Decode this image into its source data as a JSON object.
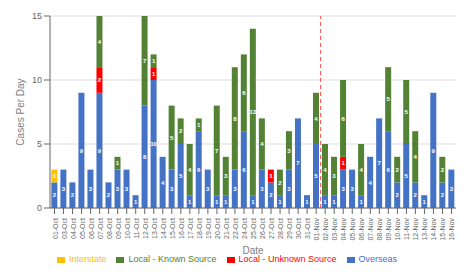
{
  "chart_data": {
    "type": "bar",
    "stacked": true,
    "data_labels": true,
    "grid": true,
    "legend": "bottom",
    "xlabel": "Date",
    "ylabel": "Cases Per Day",
    "categories": [
      "01-Oct",
      "03-Oct",
      "04-Oct",
      "05-Oct",
      "06-Oct",
      "07-Oct",
      "08-Oct",
      "09-Oct",
      "10-Oct",
      "11-Oct",
      "12-Oct",
      "13-Oct",
      "14-Oct",
      "15-Oct",
      "16-Oct",
      "17-Oct",
      "18-Oct",
      "19-Oct",
      "20-Oct",
      "21-Oct",
      "22-Oct",
      "24-Oct",
      "25-Oct",
      "26-Oct",
      "27-Oct",
      "28-Oct",
      "29-Oct",
      "30-Oct",
      "31-Oct",
      "01-Nov",
      "02-Nov",
      "03-Nov",
      "04-Nov",
      "05-Nov",
      "06-Nov",
      "07-Nov",
      "08-Nov",
      "09-Nov",
      "10-Nov",
      "11-Nov",
      "12-Nov",
      "13-Nov",
      "14-Nov",
      "15-Nov",
      "16-Nov"
    ],
    "series": [
      {
        "name": "Overseas",
        "color": "#4472C4",
        "values": [
          2,
          3,
          2,
          9,
          3,
          9,
          2,
          3,
          3,
          1,
          8,
          10,
          4,
          3,
          5,
          1,
          6,
          3,
          1,
          1,
          3,
          6,
          1,
          3,
          2,
          1,
          3,
          7,
          1,
          5,
          1,
          1,
          3,
          3,
          1,
          4,
          7,
          6,
          2,
          5,
          2,
          1,
          9,
          2,
          3
        ]
      },
      {
        "name": "Interstate",
        "color": "#FFC000",
        "values": [
          1,
          0,
          0,
          0,
          0,
          0,
          0,
          0,
          0,
          0,
          0,
          0,
          0,
          0,
          0,
          0,
          0,
          0,
          0,
          0,
          0,
          0,
          0,
          0,
          0,
          0,
          0,
          0,
          0,
          0,
          0,
          0,
          0,
          0,
          0,
          0,
          0,
          0,
          0,
          0,
          0,
          0,
          0,
          0,
          0
        ]
      },
      {
        "name": "Local - Unknown Source",
        "color": "#FF0000",
        "values": [
          0,
          0,
          0,
          0,
          0,
          2,
          0,
          0,
          0,
          0,
          0,
          1,
          0,
          0,
          0,
          0,
          0,
          0,
          0,
          0,
          0,
          0,
          0,
          0,
          1,
          0,
          0,
          0,
          0,
          0,
          0,
          0,
          1,
          0,
          0,
          0,
          0,
          0,
          0,
          0,
          0,
          0,
          0,
          0,
          0
        ]
      },
      {
        "name": "Local - Known Source",
        "color": "#548235",
        "values": [
          0,
          0,
          0,
          0,
          0,
          4,
          0,
          1,
          0,
          0,
          7,
          1,
          0,
          5,
          2,
          4,
          1,
          0,
          7,
          3,
          8,
          6,
          13,
          4,
          0,
          2,
          3,
          0,
          0,
          4,
          4,
          3,
          6,
          0,
          4,
          0,
          0,
          5,
          2,
          5,
          4,
          0,
          0,
          2,
          0
        ]
      }
    ],
    "vline": {
      "before": "02-Nov",
      "color": "#FF4444",
      "line_style": "dashed"
    },
    "ylim": [
      0,
      15
    ],
    "yticks": [
      0,
      5,
      10,
      15
    ]
  }
}
